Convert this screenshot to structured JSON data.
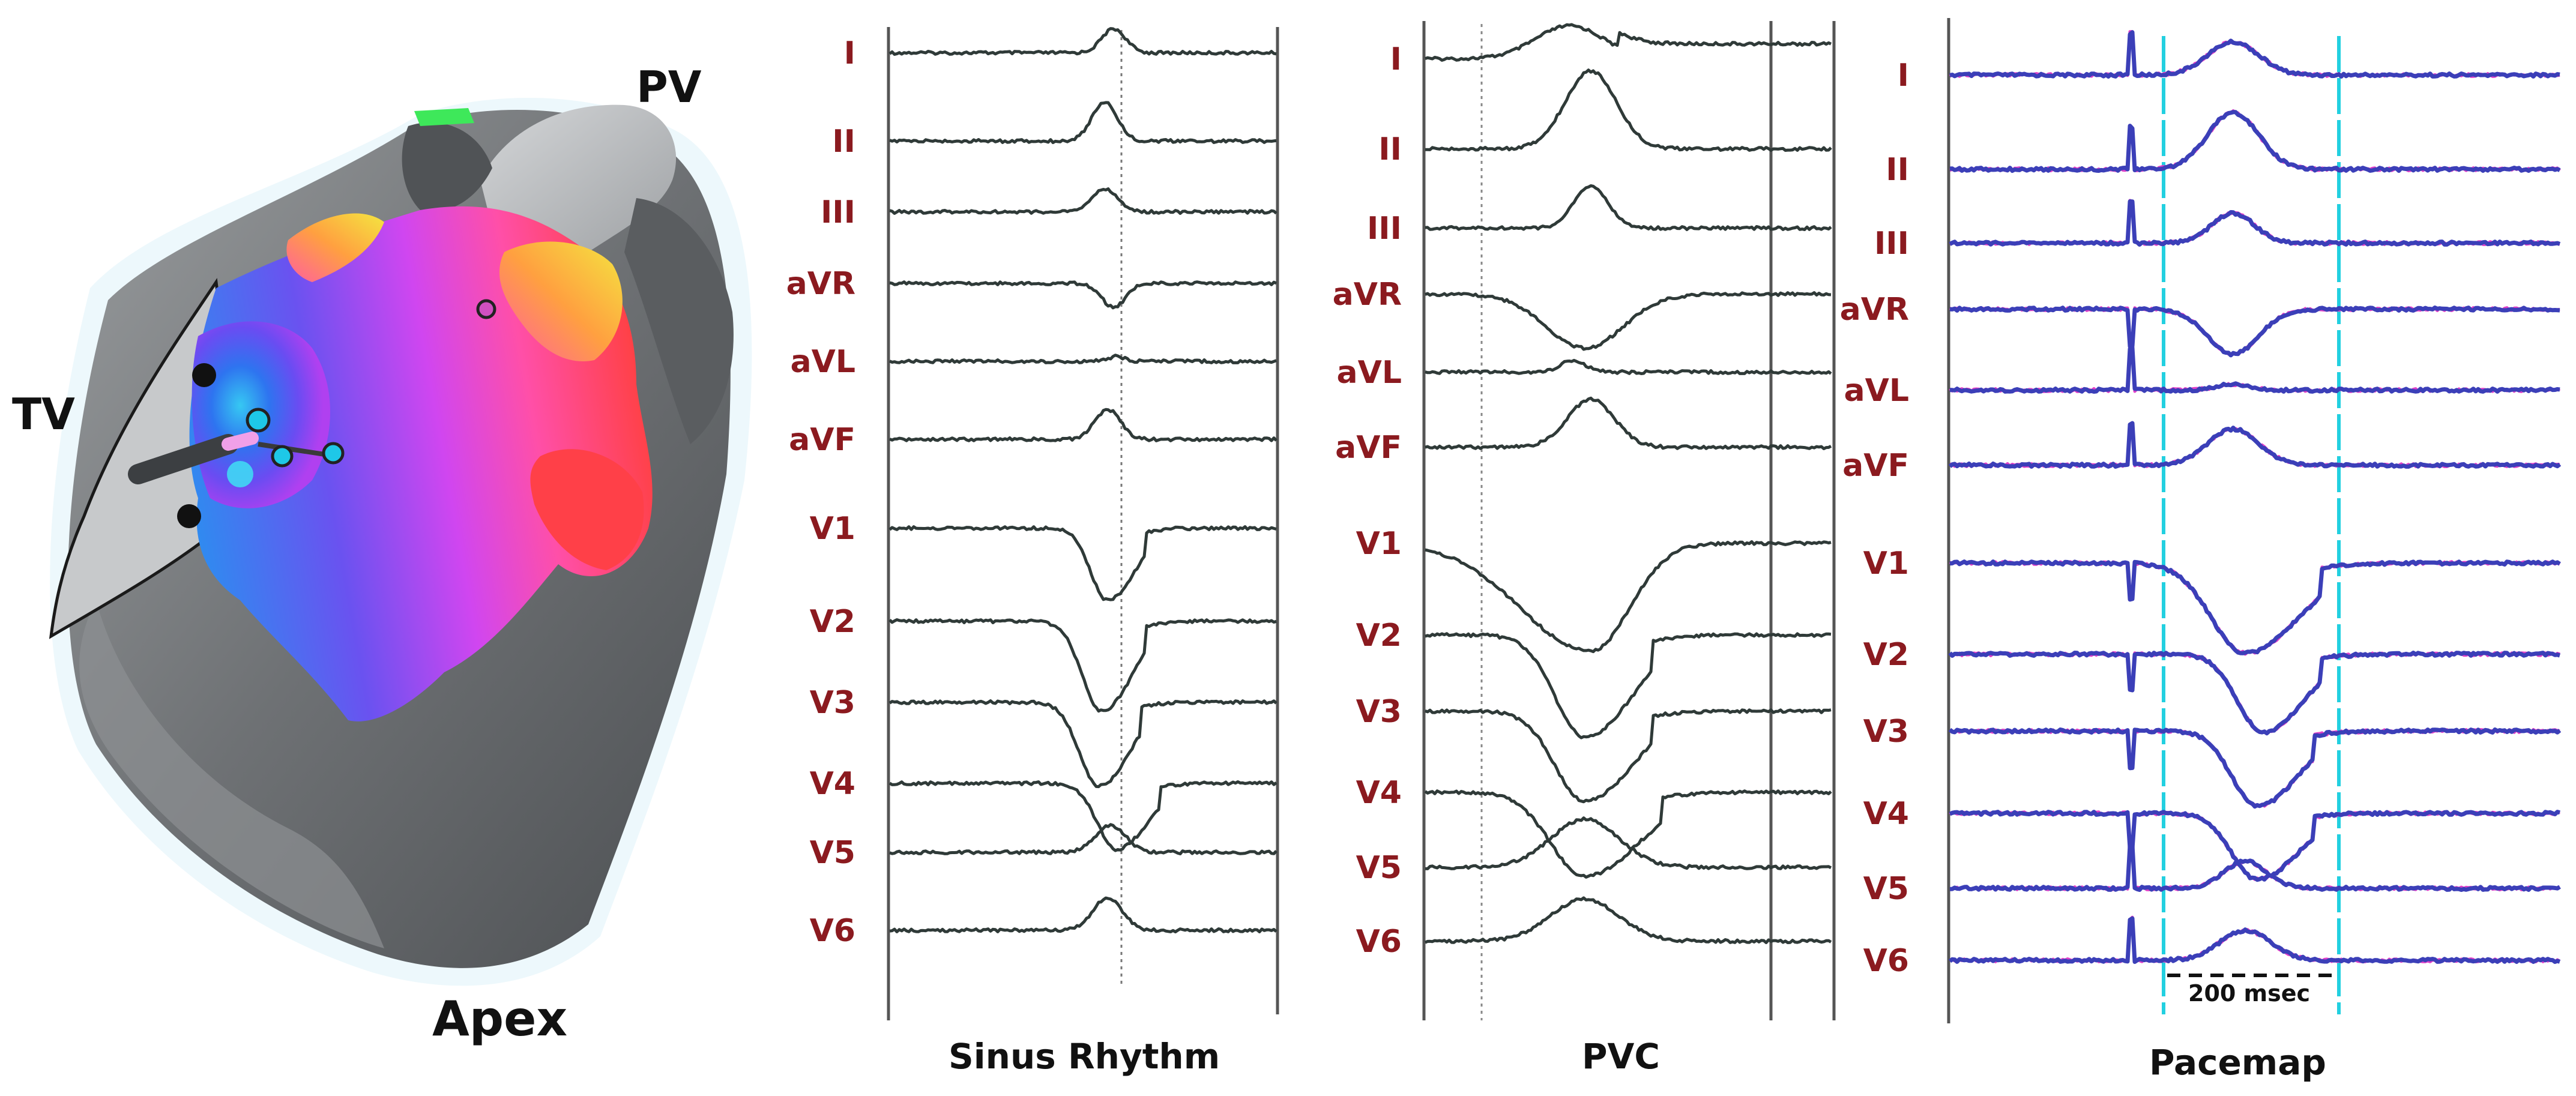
{
  "heart_map": {
    "labels": {
      "pv": "PV",
      "tv": "TV",
      "apex": "Apex"
    }
  },
  "panels": [
    {
      "id": "sinus",
      "title": "Sinus Rhythm",
      "leads": [
        "I",
        "II",
        "III",
        "aVR",
        "aVL",
        "aVF",
        "V1",
        "V2",
        "V3",
        "V4",
        "V5",
        "V6"
      ]
    },
    {
      "id": "pvc",
      "title": "PVC",
      "leads": [
        "I",
        "II",
        "III",
        "aVR",
        "aVL",
        "aVF",
        "V1",
        "V2",
        "V3",
        "V4",
        "V5",
        "V6"
      ]
    },
    {
      "id": "pacemap",
      "title": "Pacemap",
      "leads": [
        "I",
        "II",
        "III",
        "aVR",
        "aVL",
        "aVF",
        "V1",
        "V2",
        "V3",
        "V4",
        "V5",
        "V6"
      ],
      "scale_bar": "200 msec"
    }
  ],
  "colors": {
    "lead_label": "#8b1a1f",
    "trace": "#2f3a38",
    "pacemap_trace": "#3b3fb8",
    "pacemap_overlay": "#e040c8",
    "cyan_marker": "#22d0e0"
  }
}
